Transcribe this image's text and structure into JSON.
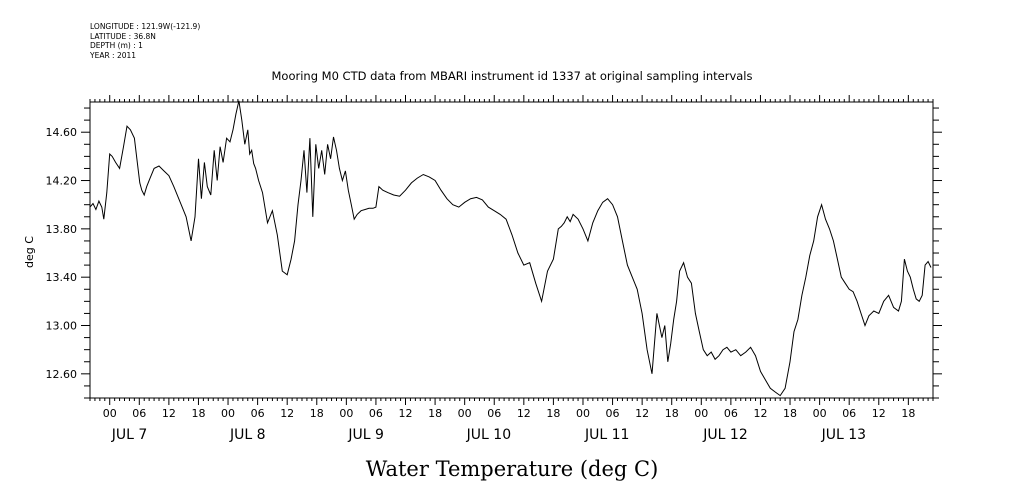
{
  "header": {
    "lines": [
      "LONGITUDE : 121.9W(-121.9)",
      "LATITUDE : 36.8N",
      "DEPTH (m) : 1",
      "YEAR : 2011"
    ]
  },
  "chart_data": {
    "type": "line",
    "title": "Mooring M0 CTD data from MBARI instrument id 1337 at original sampling intervals",
    "xlabel": "Water Temperature (deg C)",
    "ylabel": "deg C",
    "ylim": [
      12.4,
      14.85
    ],
    "y_ticks": [
      "12.60",
      "13.00",
      "13.40",
      "13.80",
      "14.20",
      "14.60"
    ],
    "x_range_hours": [
      -4,
      167
    ],
    "hour_tick_labels": [
      "00",
      "06",
      "12",
      "18",
      "00",
      "06",
      "12",
      "18",
      "00",
      "06",
      "12",
      "18",
      "00",
      "06",
      "12",
      "18",
      "00",
      "06",
      "12",
      "18",
      "00",
      "06",
      "12",
      "18",
      "00",
      "06",
      "12",
      "18"
    ],
    "day_labels": [
      "JUL 7",
      "JUL 8",
      "JUL 9",
      "JUL 10",
      "JUL 11",
      "JUL 12",
      "JUL 13"
    ],
    "series": [
      {
        "x": [
          -4.0,
          -3.4,
          -2.8,
          -2.2,
          -1.6,
          -1.2,
          -0.6,
          0.0,
          0.5,
          1.2,
          2.0,
          2.8,
          3.5,
          4.2,
          5.0,
          5.6,
          6.1,
          6.5,
          7.0,
          7.5,
          8.2,
          9.0,
          10.0,
          11.0,
          12.0,
          13.0,
          14.5,
          15.5,
          16.5,
          17.3,
          18.0,
          18.6,
          19.2,
          19.8,
          20.5,
          21.2,
          21.8,
          22.4,
          23.0,
          23.7,
          24.4,
          25.0,
          25.6,
          26.2,
          26.8,
          27.4,
          28.0,
          28.4,
          28.8,
          29.2,
          29.6,
          30.2,
          31.0,
          32.0,
          33.0,
          34.0,
          35.0,
          36.0,
          36.8,
          37.5,
          38.2,
          38.8,
          39.4,
          40.0,
          40.6,
          41.2,
          41.8,
          42.4,
          43.0,
          43.6,
          44.2,
          44.8,
          45.4,
          46.0,
          46.6,
          47.2,
          47.8,
          48.4,
          49.0,
          49.6,
          50.2,
          51.0,
          51.8,
          52.6,
          53.4,
          54.0,
          54.6,
          55.4,
          56.4,
          57.6,
          58.8,
          60.0,
          61.2,
          62.4,
          63.6,
          64.8,
          66.0,
          67.2,
          68.4,
          69.6,
          70.8,
          72.0,
          73.2,
          74.4,
          75.6,
          76.8,
          78.0,
          79.2,
          80.4,
          81.6,
          82.8,
          84.0,
          85.2,
          86.4,
          87.6,
          88.8,
          90.0,
          91.0,
          91.6,
          92.2,
          92.8,
          93.4,
          94.0,
          95.0,
          96.0,
          97.0,
          98.0,
          99.0,
          100.0,
          101.0,
          102.0,
          103.0,
          104.0,
          105.0,
          106.0,
          107.0,
          108.0,
          109.0,
          110.0,
          111.0,
          112.0,
          112.6,
          113.2,
          113.8,
          114.4,
          115.0,
          115.6,
          116.4,
          117.2,
          118.0,
          118.8,
          119.6,
          120.4,
          121.2,
          122.0,
          122.8,
          123.6,
          124.4,
          125.2,
          126.0,
          127.0,
          128.0,
          129.0,
          130.0,
          131.0,
          132.0,
          133.0,
          134.0,
          135.0,
          136.0,
          137.0,
          138.0,
          138.8,
          139.6,
          140.4,
          141.2,
          142.0,
          142.8,
          143.6,
          144.4,
          145.2,
          146.0,
          146.8,
          147.6,
          148.4,
          149.2,
          150.0,
          150.8,
          151.6,
          152.4,
          153.2,
          154.0,
          155.0,
          156.0,
          157.0,
          158.0,
          159.0,
          160.0,
          160.6,
          161.2,
          161.8,
          162.4,
          163.0,
          163.6,
          164.2,
          164.8,
          165.4,
          166.0,
          166.6
        ],
        "y": [
          13.98,
          14.01,
          13.96,
          14.03,
          13.98,
          13.88,
          14.1,
          14.42,
          14.4,
          14.35,
          14.3,
          14.48,
          14.65,
          14.62,
          14.55,
          14.35,
          14.18,
          14.12,
          14.08,
          14.15,
          14.22,
          14.3,
          14.32,
          14.28,
          14.24,
          14.15,
          14.0,
          13.9,
          13.7,
          13.9,
          14.38,
          14.05,
          14.35,
          14.15,
          14.08,
          14.45,
          14.2,
          14.48,
          14.35,
          14.55,
          14.52,
          14.62,
          14.75,
          14.86,
          14.7,
          14.5,
          14.62,
          14.42,
          14.45,
          14.34,
          14.3,
          14.2,
          14.1,
          13.85,
          13.95,
          13.75,
          13.45,
          13.42,
          13.55,
          13.7,
          14.0,
          14.2,
          14.45,
          14.1,
          14.55,
          13.9,
          14.5,
          14.3,
          14.45,
          14.25,
          14.5,
          14.38,
          14.56,
          14.45,
          14.3,
          14.2,
          14.28,
          14.12,
          14.0,
          13.88,
          13.92,
          13.95,
          13.96,
          13.97,
          13.97,
          13.98,
          14.15,
          14.12,
          14.1,
          14.08,
          14.07,
          14.12,
          14.18,
          14.22,
          14.25,
          14.23,
          14.2,
          14.12,
          14.05,
          14.0,
          13.98,
          14.02,
          14.05,
          14.06,
          14.04,
          13.98,
          13.95,
          13.92,
          13.88,
          13.75,
          13.6,
          13.5,
          13.52,
          13.35,
          13.2,
          13.45,
          13.55,
          13.8,
          13.82,
          13.85,
          13.9,
          13.86,
          13.92,
          13.88,
          13.8,
          13.7,
          13.85,
          13.95,
          14.02,
          14.05,
          14.0,
          13.9,
          13.7,
          13.5,
          13.4,
          13.3,
          13.1,
          12.8,
          12.6,
          13.1,
          12.9,
          13.0,
          12.7,
          12.85,
          13.05,
          13.2,
          13.45,
          13.52,
          13.4,
          13.35,
          13.1,
          12.95,
          12.8,
          12.75,
          12.78,
          12.72,
          12.75,
          12.8,
          12.82,
          12.78,
          12.8,
          12.75,
          12.78,
          12.82,
          12.75,
          12.62,
          12.55,
          12.48,
          12.45,
          12.42,
          12.48,
          12.7,
          12.95,
          13.05,
          13.25,
          13.4,
          13.58,
          13.7,
          13.9,
          14.0,
          13.88,
          13.8,
          13.7,
          13.55,
          13.4,
          13.35,
          13.3,
          13.28,
          13.2,
          13.1,
          13.0,
          13.08,
          13.12,
          13.1,
          13.2,
          13.25,
          13.15,
          13.12,
          13.2,
          13.55,
          13.45,
          13.4,
          13.3,
          13.22,
          13.2,
          13.25,
          13.5,
          13.53,
          13.48
        ]
      }
    ]
  }
}
